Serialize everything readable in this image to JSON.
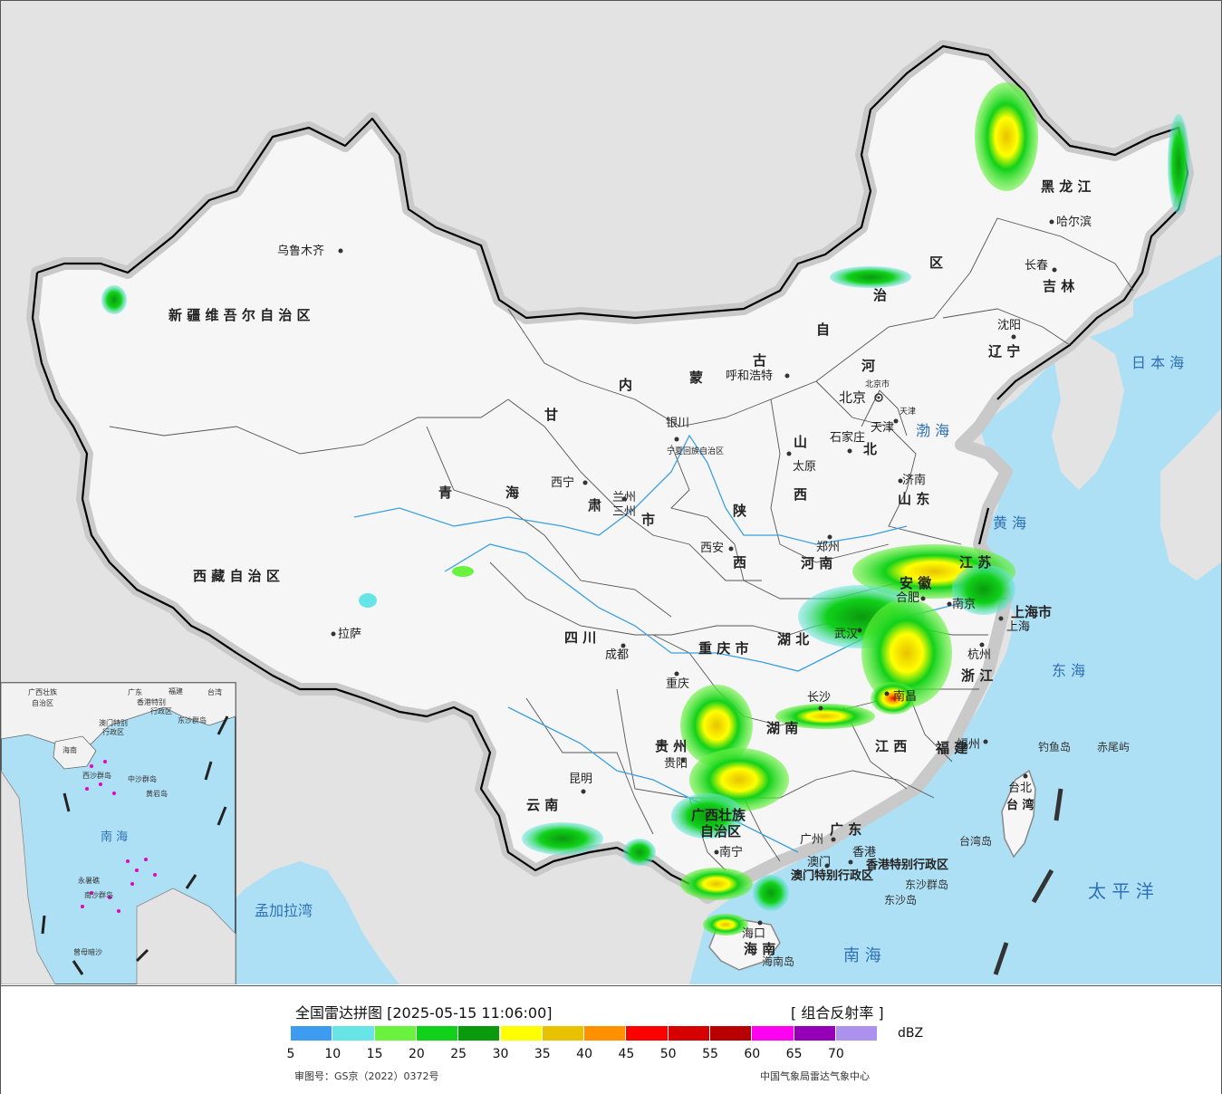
{
  "map": {
    "provinces": [
      {
        "id": "xinjiang",
        "text": "新 疆 维 吾 尔 自 治 区"
      },
      {
        "id": "xizang",
        "text": "西 藏 自 治 区"
      },
      {
        "id": "qinghai-1",
        "text": "青"
      },
      {
        "id": "qinghai-2",
        "text": "海"
      },
      {
        "id": "gansu-1",
        "text": "甘"
      },
      {
        "id": "gansu-2",
        "text": "肃"
      },
      {
        "id": "neimeng-1",
        "text": "内"
      },
      {
        "id": "neimeng-2",
        "text": "蒙"
      },
      {
        "id": "neimeng-3",
        "text": "古"
      },
      {
        "id": "neimeng-4",
        "text": "自"
      },
      {
        "id": "neimeng-5",
        "text": "治"
      },
      {
        "id": "neimeng-6",
        "text": "区"
      },
      {
        "id": "heilongjiang",
        "text": "黑 龙 江"
      },
      {
        "id": "jilin",
        "text": "吉 林"
      },
      {
        "id": "liaoning",
        "text": "辽 宁"
      },
      {
        "id": "hebei-1",
        "text": "河"
      },
      {
        "id": "hebei-2",
        "text": "北"
      },
      {
        "id": "shanxi-1",
        "text": "山"
      },
      {
        "id": "shanxi-2",
        "text": "西"
      },
      {
        "id": "shandong",
        "text": "山 东"
      },
      {
        "id": "henan",
        "text": "河 南"
      },
      {
        "id": "shaanxi-1",
        "text": "陕"
      },
      {
        "id": "shaanxi-2",
        "text": "西"
      },
      {
        "id": "sichuan",
        "text": "四 川"
      },
      {
        "id": "chongqing",
        "text": "重 庆 市"
      },
      {
        "id": "hubei",
        "text": "湖 北"
      },
      {
        "id": "hunan",
        "text": "湖 南"
      },
      {
        "id": "jiangxi",
        "text": "江 西"
      },
      {
        "id": "anhui",
        "text": "安 徽"
      },
      {
        "id": "jiangsu",
        "text": "江 苏"
      },
      {
        "id": "zhejiang",
        "text": "浙 江"
      },
      {
        "id": "fujian",
        "text": "福 建"
      },
      {
        "id": "guangdong",
        "text": "广 东"
      },
      {
        "id": "guangxi",
        "text": "广西壮族"
      },
      {
        "id": "guangxi-2",
        "text": "自治区"
      },
      {
        "id": "guizhou",
        "text": "贵 州"
      },
      {
        "id": "yunnan",
        "text": "云 南"
      },
      {
        "id": "hainan",
        "text": "海 南"
      },
      {
        "id": "taiwan",
        "text": "台 湾"
      },
      {
        "id": "shanghai",
        "text": "上海市"
      },
      {
        "id": "hk",
        "text": "香港特别行政区"
      },
      {
        "id": "macao",
        "text": "澳门特别行政区"
      },
      {
        "id": "ningxia",
        "text": "宁夏回族自治区"
      },
      {
        "id": "gansu-city",
        "text": "三州"
      },
      {
        "id": "gansu-shi",
        "text": "市"
      }
    ],
    "cities": [
      {
        "id": "urumqi",
        "text": "乌鲁木齐"
      },
      {
        "id": "lhasa",
        "text": "拉萨"
      },
      {
        "id": "xining",
        "text": "西宁"
      },
      {
        "id": "lanzhou",
        "text": "兰州"
      },
      {
        "id": "yinchuan",
        "text": "银川"
      },
      {
        "id": "hohhot",
        "text": "呼和浩特"
      },
      {
        "id": "beijing",
        "text": "北京"
      },
      {
        "id": "beijing-small",
        "text": "北京市"
      },
      {
        "id": "tianjin",
        "text": "天津"
      },
      {
        "id": "tianjin-small",
        "text": "天津"
      },
      {
        "id": "shijiazhuang",
        "text": "石家庄"
      },
      {
        "id": "taiyuan",
        "text": "太原"
      },
      {
        "id": "jinan",
        "text": "济南"
      },
      {
        "id": "zhengzhou",
        "text": "郑州"
      },
      {
        "id": "xian",
        "text": "西安"
      },
      {
        "id": "chengdu",
        "text": "成都"
      },
      {
        "id": "chongqing-c",
        "text": "重庆"
      },
      {
        "id": "wuhan",
        "text": "武汉"
      },
      {
        "id": "changsha",
        "text": "长沙"
      },
      {
        "id": "nanchang",
        "text": "南昌"
      },
      {
        "id": "hefei",
        "text": "合肥"
      },
      {
        "id": "nanjing",
        "text": "南京"
      },
      {
        "id": "shanghai-c",
        "text": "上海"
      },
      {
        "id": "hangzhou",
        "text": "杭州"
      },
      {
        "id": "fuzhou",
        "text": "福州"
      },
      {
        "id": "taibei",
        "text": "台北"
      },
      {
        "id": "guangzhou",
        "text": "广州"
      },
      {
        "id": "xianggang",
        "text": "香港"
      },
      {
        "id": "aomen",
        "text": "澳门"
      },
      {
        "id": "nanning",
        "text": "南宁"
      },
      {
        "id": "guiyang",
        "text": "贵阳"
      },
      {
        "id": "kunming",
        "text": "昆明"
      },
      {
        "id": "haikou",
        "text": "海口"
      },
      {
        "id": "harbin",
        "text": "哈尔滨"
      },
      {
        "id": "changchun",
        "text": "长春"
      },
      {
        "id": "shenyang",
        "text": "沈阳"
      }
    ],
    "seas": [
      {
        "id": "ribenhai",
        "text": "日 本 海"
      },
      {
        "id": "bohai",
        "text": "渤 海"
      },
      {
        "id": "huanghai",
        "text": "黄 海"
      },
      {
        "id": "donghai",
        "text": "东 海"
      },
      {
        "id": "taipingyang",
        "text": "太 平 洋"
      },
      {
        "id": "nanhai",
        "text": "南 海"
      },
      {
        "id": "mengjiala",
        "text": "孟加拉湾"
      }
    ],
    "islands": [
      {
        "id": "diaoyu",
        "text": "钓鱼岛"
      },
      {
        "id": "chiwei",
        "text": "赤尾屿"
      },
      {
        "id": "taiwan-island",
        "text": "台湾岛"
      },
      {
        "id": "hainan-island",
        "text": "海南岛"
      },
      {
        "id": "dongsha-qundao",
        "text": "东沙群岛"
      },
      {
        "id": "dongsha-dao",
        "text": "东沙岛"
      }
    ],
    "inset": {
      "nanhai": "南 海",
      "labels": [
        "广西壮族",
        "自治区",
        "广东",
        "福建",
        "台湾",
        "香港特别",
        "行政区",
        "澳门特别",
        "行政区",
        "东沙群岛",
        "海南",
        "中沙群岛",
        "黄岩岛",
        "西沙群岛",
        "南沙群岛",
        "曾母暗沙",
        "永暑礁"
      ]
    }
  },
  "legend": {
    "title": "全国雷达拼图 [2025-05-15 11:06:00]",
    "product": "[ 组合反射率 ]",
    "unit": "dBZ",
    "colors": [
      "#3d9cf0",
      "#67e4e6",
      "#6af23e",
      "#11d11a",
      "#0a9a0e",
      "#ffff00",
      "#e8c200",
      "#ff9000",
      "#ff0000",
      "#d60000",
      "#b80000",
      "#ff00f0",
      "#9500b6",
      "#ac92ee"
    ],
    "ticks": [
      "5",
      "10",
      "15",
      "20",
      "25",
      "30",
      "35",
      "40",
      "45",
      "50",
      "55",
      "60",
      "65",
      "70"
    ],
    "approval": "审图号：GS京（2022）0372号",
    "source": "中国气象局雷达气象中心"
  }
}
